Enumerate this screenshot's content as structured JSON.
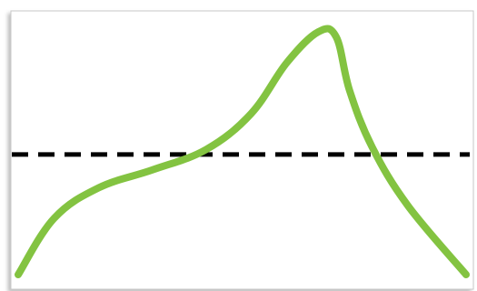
{
  "chart_data": {
    "type": "line",
    "title": "",
    "xlabel": "",
    "ylabel": "",
    "grid": false,
    "xlim": [
      0,
      100
    ],
    "ylim": [
      0,
      100
    ],
    "series": [
      {
        "color": "#83c341",
        "values": [
          {
            "x": 0,
            "y": 0
          },
          {
            "x": 8,
            "y": 22
          },
          {
            "x": 18,
            "y": 34
          },
          {
            "x": 30,
            "y": 41
          },
          {
            "x": 42,
            "y": 49
          },
          {
            "x": 52,
            "y": 63
          },
          {
            "x": 60,
            "y": 83
          },
          {
            "x": 67,
            "y": 95
          },
          {
            "x": 71,
            "y": 93
          },
          {
            "x": 74,
            "y": 72
          },
          {
            "x": 79,
            "y": 50
          },
          {
            "x": 87,
            "y": 27
          },
          {
            "x": 100,
            "y": 0
          }
        ]
      }
    ],
    "reference_line": {
      "y": 47,
      "color": "#000000",
      "style": "dashed"
    }
  }
}
